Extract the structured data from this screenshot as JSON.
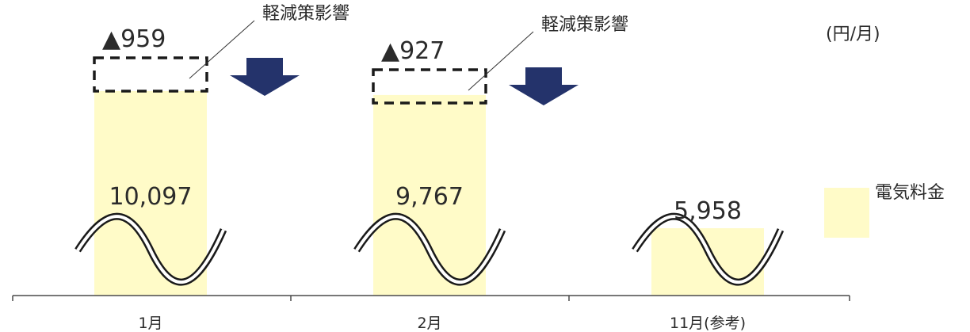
{
  "chart_data": {
    "type": "bar",
    "categories": [
      "1月",
      "2月",
      "11月(参考)"
    ],
    "series": [
      {
        "name": "電気料金",
        "values": [
          10097,
          9767,
          5958
        ]
      }
    ],
    "value_labels": [
      "10,097",
      "9,767",
      "5,958"
    ],
    "reductions": [
      {
        "label": "▲959",
        "value": -959,
        "note": "軽減策影響"
      },
      {
        "label": "▲927",
        "value": -927,
        "note": "軽減策影響"
      }
    ],
    "unit": "(円/月)",
    "axis_break": true,
    "legend_position": "right",
    "grid": false
  },
  "colors": {
    "bar": "#fffbc8",
    "arrow": "#24336b",
    "text": "#2b2b2b",
    "axis": "#4a4a4a",
    "dashed_box": "#1a1a1a"
  }
}
